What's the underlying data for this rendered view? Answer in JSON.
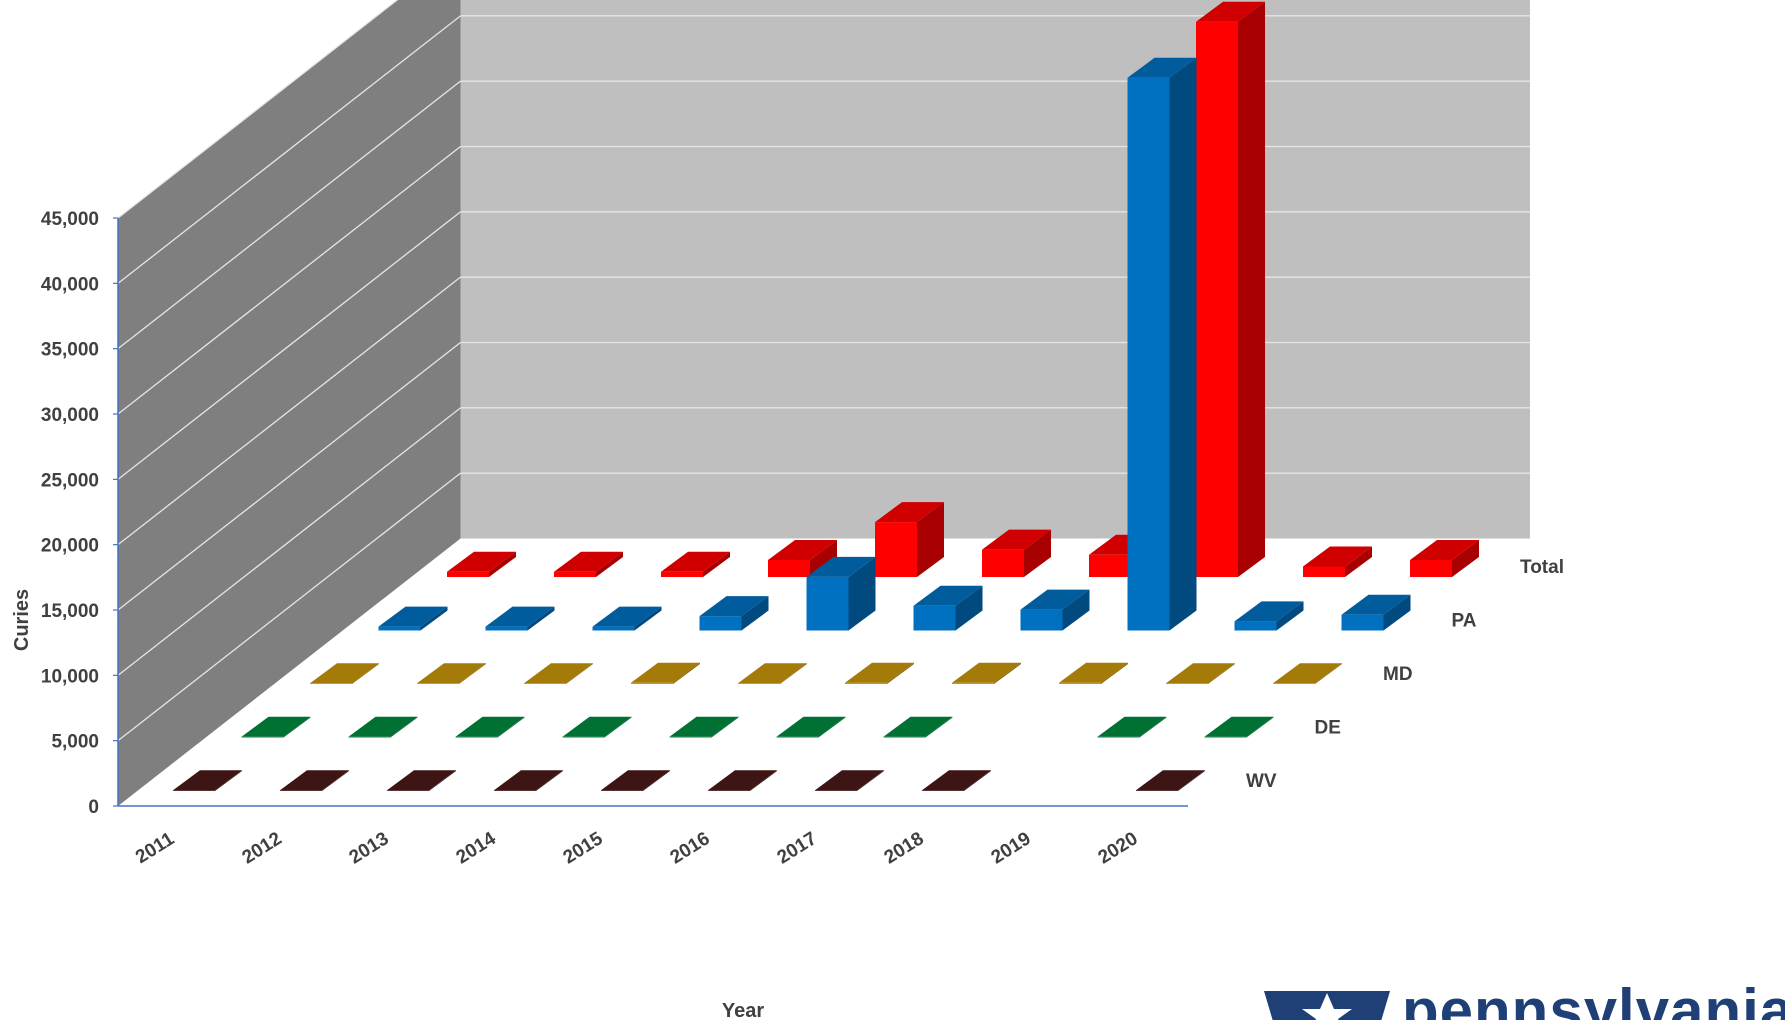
{
  "chart_data": {
    "type": "bar",
    "subtype": "3d-grouped-bar",
    "xlabel": "Year",
    "ylabel": "Curies",
    "ylim": [
      0,
      45000
    ],
    "yticks": [
      "0",
      "5,000",
      "10,000",
      "15,000",
      "20,000",
      "25,000",
      "30,000",
      "35,000",
      "40,000",
      "45,000"
    ],
    "categories": [
      "2011",
      "2012",
      "2013",
      "2014",
      "2015",
      "2016",
      "2017",
      "2018",
      "2019",
      "2020"
    ],
    "grid": true,
    "series": [
      {
        "name": "WV",
        "color": "#4a1a1a",
        "values": [
          50,
          50,
          50,
          50,
          50,
          50,
          50,
          50,
          null,
          50
        ]
      },
      {
        "name": "DE",
        "color": "#008a3e",
        "values": [
          50,
          50,
          50,
          50,
          50,
          50,
          50,
          null,
          50,
          50
        ]
      },
      {
        "name": "MD",
        "color": "#c8960a",
        "values": [
          50,
          50,
          50,
          100,
          50,
          100,
          100,
          100,
          50,
          50
        ]
      },
      {
        "name": "PA",
        "color": "#0070c0",
        "values": [
          300,
          300,
          300,
          1100,
          4100,
          1900,
          1600,
          42300,
          700,
          1200
        ]
      },
      {
        "name": "Total",
        "color": "#ff0000",
        "values": [
          400,
          400,
          400,
          1300,
          4200,
          2100,
          1700,
          42500,
          800,
          1300
        ]
      }
    ]
  },
  "logo": {
    "text": "pennsylvania",
    "icon": "keystone-star-icon"
  }
}
